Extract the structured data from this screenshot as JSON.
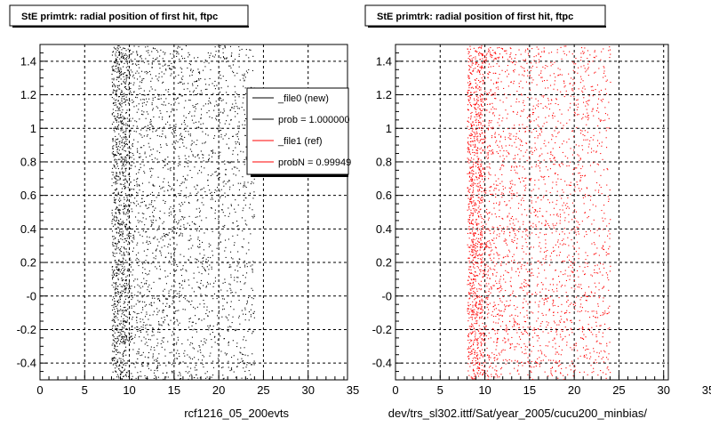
{
  "colors": {
    "new": "#000000",
    "ref": "#ff0000",
    "background": "#ffffff"
  },
  "legend": {
    "entries": [
      {
        "label": "_file0 (new)",
        "color": "#000000"
      },
      {
        "label": "prob = 1.000000",
        "color": "#000000"
      },
      {
        "label": "_file1 (ref)",
        "color": "#ff0000"
      },
      {
        "label": "probN = 0.99949",
        "color": "#ff0000"
      }
    ]
  },
  "chart_data": [
    {
      "type": "scatter",
      "title": "StE primtrk: radial position of first hit, ftpc",
      "xlabel": "rcf1216_05_200evts",
      "ylabel": "",
      "xlim": [
        0,
        35
      ],
      "ylim": [
        -0.5,
        1.5
      ],
      "xticks": [
        "0",
        "5",
        "10",
        "15",
        "20",
        "25",
        "30",
        "35"
      ],
      "yticks": [
        "-0.4",
        "-0.2",
        "-0",
        "0.2",
        "0.4",
        "0.6",
        "0.8",
        "1",
        "1.2",
        "1.4"
      ],
      "grid": true,
      "series": [
        {
          "color": "#000000",
          "x_range": [
            8,
            24
          ],
          "y_range": [
            -0.5,
            1.5
          ],
          "dense_band_x": [
            8,
            9.5
          ]
        }
      ]
    },
    {
      "type": "scatter",
      "title": "StE primtrk: radial position of first hit, ftpc",
      "xlabel": "dev/trs_sl302.ittf/Sat/year_2005/cucu200_minbias/",
      "ylabel": "",
      "xlim": [
        0,
        35
      ],
      "ylim": [
        -0.5,
        1.5
      ],
      "xticks": [
        "0",
        "5",
        "10",
        "15",
        "20",
        "25",
        "30",
        "35"
      ],
      "yticks": [
        "-0.4",
        "-0.2",
        "-0",
        "0.2",
        "0.4",
        "0.6",
        "0.8",
        "1",
        "1.2",
        "1.4"
      ],
      "grid": true,
      "series": [
        {
          "color": "#ff0000",
          "x_range": [
            8,
            24
          ],
          "y_range": [
            -0.5,
            1.5
          ],
          "dense_band_x": [
            8,
            9.5
          ]
        }
      ]
    }
  ]
}
